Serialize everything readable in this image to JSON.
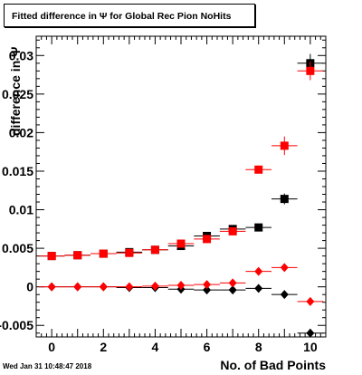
{
  "title": "Fitted difference in Ψ for Global Rec Pion NoHits",
  "footer_date": "Wed Jan 31 10:48:47 2018",
  "chart_data": {
    "type": "scatter",
    "xlabel": "No. of Bad Points",
    "ylabel": "difference in Ψ",
    "xlim": [
      -0.6,
      10.6
    ],
    "ylim": [
      -0.0065,
      0.0325
    ],
    "x_ticks": [
      0,
      2,
      4,
      6,
      8,
      10
    ],
    "y_ticks": [
      -0.005,
      0,
      0.005,
      0.01,
      0.015,
      0.02,
      0.025,
      0.03
    ],
    "y_tick_labels": [
      "-0.005",
      "0",
      "0.005",
      "0.01",
      "0.015",
      "0.02",
      "0.025",
      "0.03"
    ],
    "grid": false,
    "series": [
      {
        "marker": "square",
        "color": "#000000",
        "x": [
          0,
          1,
          2,
          3,
          4,
          5,
          6,
          7,
          8,
          9,
          10
        ],
        "y": [
          0.004,
          0.0041,
          0.0043,
          0.0045,
          0.0048,
          0.0053,
          0.0066,
          0.0075,
          0.0077,
          0.0114,
          0.029
        ],
        "yerr": [
          0.0002,
          0.0002,
          0.0002,
          0.0002,
          0.0002,
          0.0002,
          0.0003,
          0.0003,
          0.0003,
          0.0007,
          0.0012
        ]
      },
      {
        "marker": "square",
        "color": "#ff0000",
        "x": [
          0,
          1,
          2,
          3,
          4,
          5,
          6,
          7,
          8,
          9,
          10
        ],
        "y": [
          0.004,
          0.0041,
          0.0043,
          0.0044,
          0.0048,
          0.0056,
          0.0062,
          0.0072,
          0.0152,
          0.0183,
          0.028
        ],
        "yerr": [
          0.0002,
          0.0002,
          0.0002,
          0.0002,
          0.0002,
          0.0002,
          0.0003,
          0.0003,
          0.0005,
          0.0012,
          0.0012
        ]
      },
      {
        "marker": "diamond",
        "color": "#000000",
        "x": [
          0,
          1,
          2,
          3,
          4,
          5,
          6,
          7,
          8,
          9,
          10
        ],
        "y": [
          0.0,
          0.0,
          0.0,
          -0.0001,
          -0.0001,
          -0.0003,
          -0.0004,
          -0.0004,
          -0.0002,
          -0.001,
          -0.006
        ],
        "yerr": [
          0.0001,
          0.0001,
          0.0001,
          0.0001,
          0.0001,
          0.0001,
          0.0001,
          0.0001,
          0.0002,
          0.0002,
          0.0003
        ]
      },
      {
        "marker": "diamond",
        "color": "#ff0000",
        "x": [
          0,
          1,
          2,
          3,
          4,
          5,
          6,
          7,
          8,
          9,
          10
        ],
        "y": [
          0.0,
          0.0,
          0.0,
          0.0,
          0.0001,
          0.0002,
          0.0003,
          0.0005,
          0.002,
          0.0025,
          -0.0019
        ],
        "yerr": [
          0.0001,
          0.0001,
          0.0001,
          0.0001,
          0.0001,
          0.0001,
          0.0001,
          0.0002,
          0.0002,
          0.0002,
          0.0003
        ]
      }
    ]
  }
}
